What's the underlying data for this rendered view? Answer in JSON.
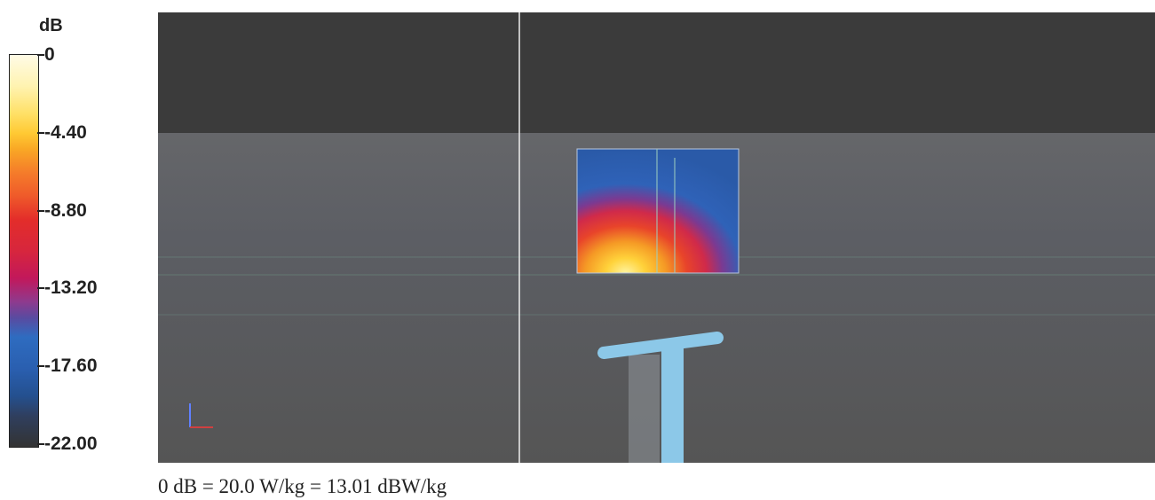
{
  "colorbar": {
    "unit": "dB",
    "ticks": [
      "0",
      "-4.40",
      "-8.80",
      "-13.20",
      "-17.60",
      "-22.00"
    ]
  },
  "caption": "0 dB = 20.0 W/kg = 13.01 dBW/kg"
}
